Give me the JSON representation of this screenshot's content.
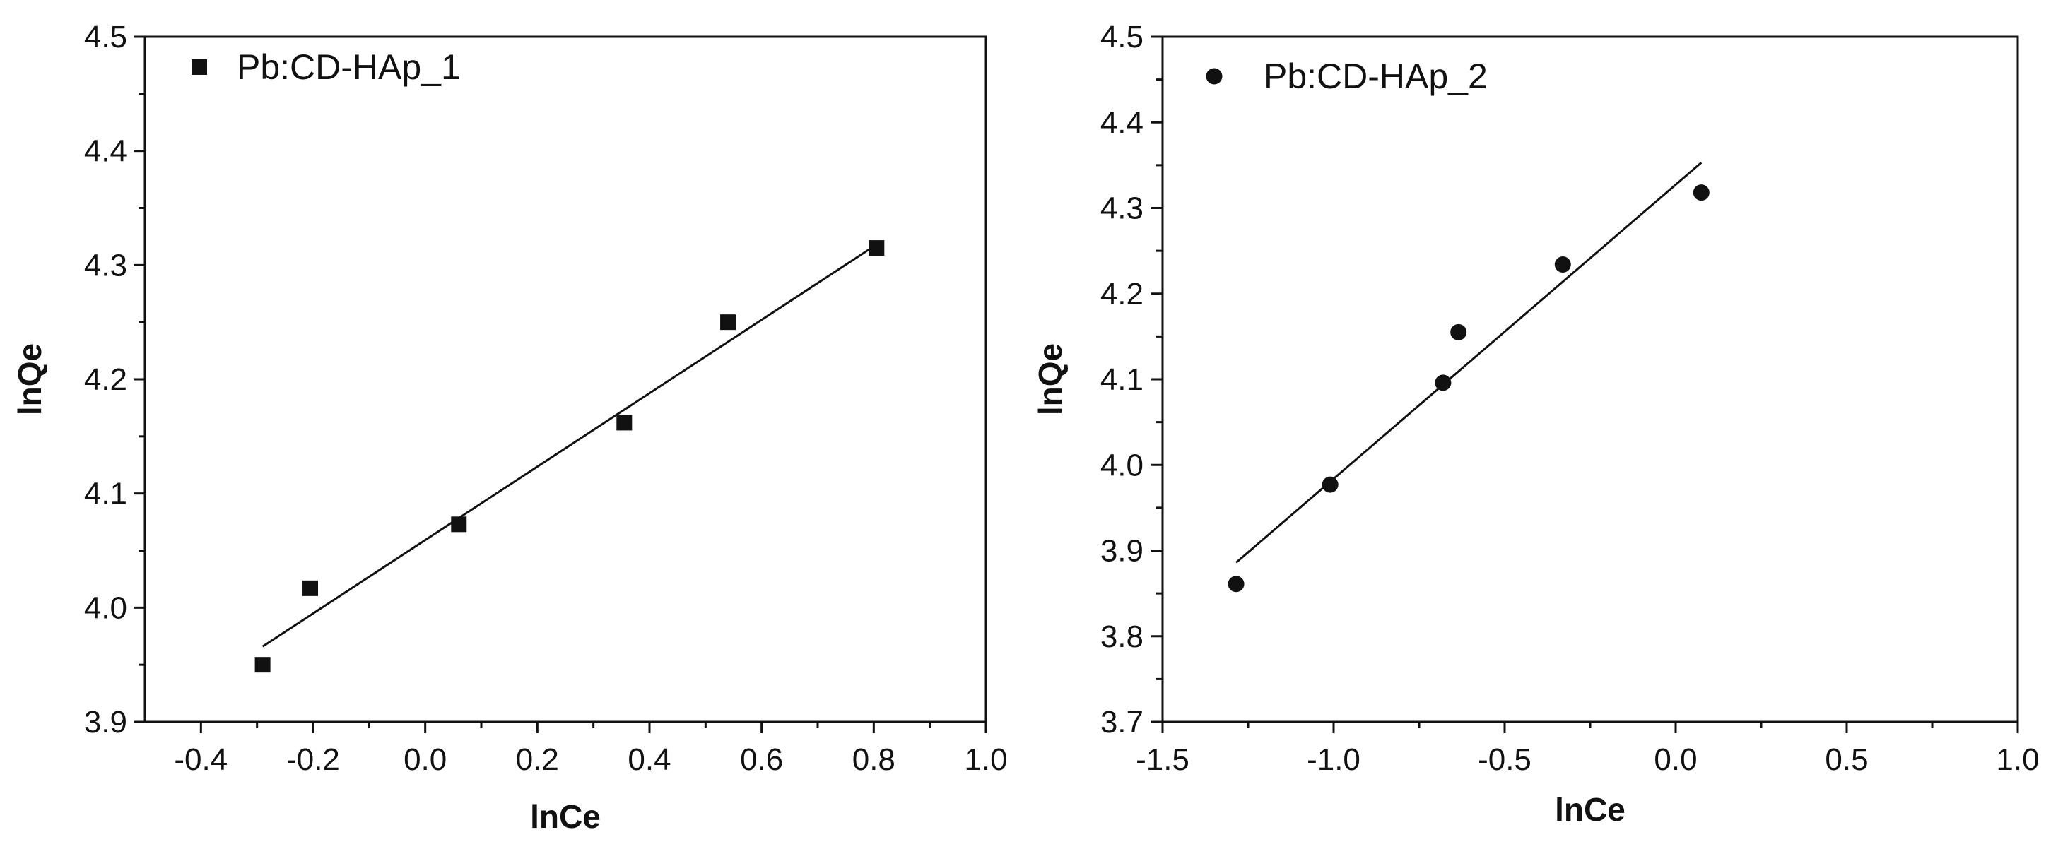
{
  "chart_data": [
    {
      "type": "scatter",
      "title": "",
      "xlabel": "lnCe",
      "ylabel": "lnQe",
      "xlim": [
        -0.5,
        1.0
      ],
      "ylim": [
        3.9,
        4.5
      ],
      "xticks": [
        -0.4,
        -0.2,
        0.0,
        0.2,
        0.4,
        0.6,
        0.8,
        1.0
      ],
      "xtick_labels": [
        "-0.4",
        "-0.2",
        "0.0",
        "0.2",
        "0.4",
        "0.6",
        "0.8",
        "1.0"
      ],
      "yticks": [
        3.9,
        4.0,
        4.1,
        4.2,
        4.3,
        4.4,
        4.5
      ],
      "ytick_labels": [
        "3.9",
        "4.0",
        "4.1",
        "4.2",
        "4.3",
        "4.4",
        "4.5"
      ],
      "legend_position": "top-left",
      "grid": false,
      "series": [
        {
          "name": "Pb:CD-HAp_1",
          "marker": "square",
          "color": "#111111",
          "x": [
            -0.29,
            -0.205,
            0.06,
            0.355,
            0.54,
            0.805
          ],
          "y": [
            3.95,
            4.017,
            4.073,
            4.162,
            4.25,
            4.315
          ]
        }
      ],
      "fit_line": {
        "x": [
          -0.29,
          0.805
        ],
        "y": [
          3.966,
          4.318
        ]
      }
    },
    {
      "type": "scatter",
      "title": "",
      "xlabel": "lnCe",
      "ylabel": "lnQe",
      "xlim": [
        -1.5,
        1.0
      ],
      "ylim": [
        3.7,
        4.5
      ],
      "xticks": [
        -1.5,
        -1.0,
        -0.5,
        0.0,
        0.5,
        1.0
      ],
      "xtick_labels": [
        "-1.5",
        "-1.0",
        "-0.5",
        "0.0",
        "0.5",
        "1.0"
      ],
      "yticks": [
        3.7,
        3.8,
        3.9,
        4.0,
        4.1,
        4.2,
        4.3,
        4.4,
        4.5
      ],
      "ytick_labels": [
        "3.7",
        "3.8",
        "3.9",
        "4.0",
        "4.1",
        "4.2",
        "4.3",
        "4.4",
        "4.5"
      ],
      "legend_position": "top-left",
      "grid": false,
      "series": [
        {
          "name": "Pb:CD-HAp_2",
          "marker": "circle",
          "color": "#111111",
          "x": [
            -1.285,
            -1.01,
            -0.68,
            -0.635,
            -0.33,
            0.075
          ],
          "y": [
            3.861,
            3.977,
            4.096,
            4.155,
            4.234,
            4.318
          ]
        }
      ],
      "fit_line": {
        "x": [
          -1.285,
          0.075
        ],
        "y": [
          3.886,
          4.353
        ]
      }
    }
  ]
}
